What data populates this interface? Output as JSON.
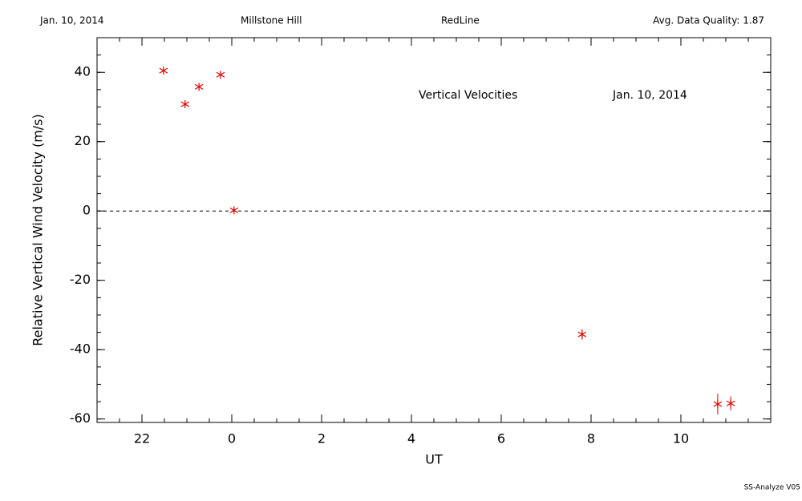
{
  "header": {
    "date": "Jan. 10, 2014",
    "site": "Millstone Hill",
    "instrument": "RedLine",
    "quality": "Avg. Data Quality: 1.87"
  },
  "footer": "SS-Analyze V05",
  "chart_data": {
    "type": "scatter",
    "xlabel": "UT",
    "ylabel": "Relative Vertical Wind Velocity (m/s)",
    "annotations": [
      "Vertical Velocities",
      "Jan. 10, 2014"
    ],
    "x": [
      -1.52,
      -1.04,
      -0.73,
      -0.25,
      0.05,
      7.8,
      10.82,
      11.11
    ],
    "series": [
      {
        "name": "Vertical Velocities",
        "color": "#e00000",
        "values": [
          40.5,
          30.8,
          35.8,
          39.3,
          0.2,
          -35.6,
          -55.7,
          -55.5
        ],
        "errors": [
          0.5,
          0.5,
          0.5,
          0.5,
          0.5,
          1.5,
          3,
          2
        ]
      }
    ],
    "xlim": [
      -3,
      12
    ],
    "ylim": [
      -61,
      50
    ],
    "xticks": [
      {
        "value": -2,
        "label": "22"
      },
      0,
      2,
      4,
      6,
      8,
      10
    ],
    "yticks": [
      -60,
      -40,
      -20,
      0,
      20,
      40
    ],
    "xminor": 0.5,
    "yminor": 5,
    "hline": 0
  }
}
